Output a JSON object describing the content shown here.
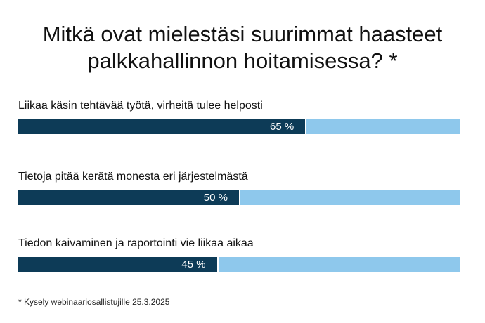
{
  "title_lines": [
    "Mitkä ovat mielestäsi suurimmat haasteet",
    "palkkahallinnon hoitamisessa? *"
  ],
  "footnote": "* Kysely webinaariosallistujille 25.3.2025",
  "colors": {
    "filled": "#0d3b57",
    "remainder": "#8ec8ec"
  },
  "chart_data": {
    "type": "bar",
    "orientation": "horizontal",
    "title": "Mitkä ovat mielestäsi suurimmat haasteet palkkahallinnon hoitamisessa? *",
    "categories": [
      "Liikaa käsin tehtävää työtä, virheitä tulee helposti",
      "Tietoja pitää kerätä monesta eri järjestelmästä",
      "Tiedon kaivaminen ja raportointi vie liikaa aikaa"
    ],
    "values": [
      65,
      50,
      45
    ],
    "value_labels": [
      "65 %",
      "50 %",
      "45 %"
    ],
    "xlim": [
      0,
      100
    ],
    "unit": "%",
    "grid": false,
    "legend": "none"
  }
}
